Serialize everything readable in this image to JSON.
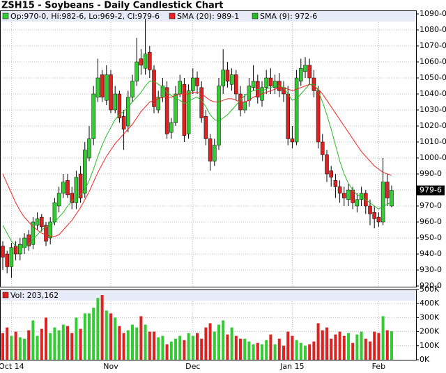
{
  "chart_data": {
    "type": "candlestick",
    "title": "ZSH15 - Soybeans - Daily Candlestick Chart",
    "ohlc_label": "Op:970-0, Hi:982-6, Lo:969-2, Cl:979-6",
    "categories": [
      null,
      null,
      "Oct 14",
      null,
      null,
      null,
      null,
      null,
      null,
      null,
      null,
      null,
      null,
      null,
      null,
      null,
      null,
      null,
      null,
      null,
      null,
      null,
      null,
      null,
      null,
      "Nov",
      null,
      null,
      null,
      null,
      null,
      null,
      null,
      null,
      null,
      null,
      null,
      null,
      null,
      null,
      null,
      null,
      null,
      null,
      "Dec",
      null,
      null,
      null,
      null,
      null,
      null,
      null,
      null,
      null,
      null,
      null,
      null,
      null,
      null,
      null,
      null,
      null,
      null,
      null,
      null,
      null,
      null,
      "Jan 15",
      null,
      null,
      null,
      null,
      null,
      null,
      null,
      null,
      null,
      null,
      null,
      null,
      null,
      null,
      null,
      null,
      null,
      null,
      null,
      "Feb",
      null,
      null,
      null
    ],
    "open": [
      945,
      940,
      932,
      945,
      940,
      944,
      952,
      946,
      958,
      963,
      958,
      950,
      960,
      970,
      978,
      986,
      978,
      972,
      990,
      978,
      1000,
      1012,
      1038,
      1052,
      1036,
      1052,
      1030,
      1040,
      1026,
      1020,
      1038,
      1048,
      1062,
      1056,
      1066,
      1055,
      1030,
      1038,
      1044,
      1016,
      1022,
      1040,
      1046,
      1015,
      1042,
      1050,
      1044,
      1026,
      1012,
      998,
      1008,
      1045,
      1055,
      1046,
      1052,
      1040,
      1030,
      1036,
      1044,
      1048,
      1036,
      1044,
      1050,
      1044,
      1048,
      1044,
      1040,
      1012,
      1010,
      1048,
      1054,
      1058,
      1050,
      1042,
      1010,
      1002,
      992,
      986,
      982,
      978,
      974,
      980,
      970,
      974,
      978,
      970,
      966,
      963,
      960,
      985,
      970
    ],
    "high": [
      948,
      942,
      947,
      948,
      950,
      953,
      955,
      963,
      966,
      965,
      960,
      963,
      975,
      982,
      990,
      990,
      982,
      992,
      995,
      1010,
      1020,
      1045,
      1062,
      1055,
      1058,
      1055,
      1045,
      1042,
      1030,
      1042,
      1052,
      1075,
      1068,
      1087,
      1070,
      1058,
      1042,
      1050,
      1048,
      1025,
      1045,
      1052,
      1050,
      1046,
      1056,
      1054,
      1048,
      1030,
      1015,
      1012,
      1050,
      1068,
      1060,
      1056,
      1055,
      1045,
      1040,
      1050,
      1058,
      1052,
      1048,
      1055,
      1056,
      1052,
      1053,
      1048,
      1045,
      1020,
      1055,
      1062,
      1063,
      1062,
      1055,
      1045,
      1015,
      1005,
      995,
      990,
      986,
      982,
      984,
      982,
      978,
      982,
      980,
      974,
      970,
      966,
      1000,
      990,
      982.75
    ],
    "low": [
      930,
      928,
      925,
      936,
      936,
      940,
      942,
      943,
      955,
      954,
      945,
      946,
      958,
      966,
      975,
      975,
      968,
      968,
      972,
      975,
      998,
      1008,
      1035,
      1035,
      1033,
      1028,
      1028,
      1022,
      1005,
      1016,
      1035,
      1045,
      1052,
      1052,
      1050,
      1028,
      1028,
      1035,
      1012,
      1012,
      1020,
      1038,
      1010,
      1012,
      1040,
      1040,
      1022,
      1008,
      992,
      995,
      1005,
      1040,
      1044,
      1042,
      1036,
      1026,
      1028,
      1032,
      1042,
      1034,
      1032,
      1040,
      1040,
      1040,
      1038,
      1035,
      1008,
      1006,
      1008,
      1045,
      1050,
      1046,
      1038,
      1006,
      998,
      985,
      982,
      975,
      972,
      970,
      970,
      968,
      966,
      970,
      965,
      958,
      956,
      957,
      958,
      970,
      969.25
    ],
    "close": [
      938,
      932,
      944,
      940,
      946,
      950,
      945,
      960,
      962,
      957,
      948,
      960,
      972,
      978,
      985,
      977,
      972,
      988,
      975,
      1005,
      1012,
      1040,
      1050,
      1038,
      1052,
      1030,
      1040,
      1025,
      1018,
      1038,
      1048,
      1060,
      1058,
      1065,
      1055,
      1032,
      1038,
      1045,
      1015,
      1022,
      1040,
      1048,
      1014,
      1042,
      1050,
      1045,
      1025,
      1012,
      998,
      1008,
      1045,
      1055,
      1048,
      1052,
      1040,
      1030,
      1035,
      1045,
      1048,
      1038,
      1044,
      1050,
      1045,
      1048,
      1042,
      1040,
      1012,
      1010,
      1050,
      1056,
      1058,
      1050,
      1042,
      1010,
      1002,
      990,
      988,
      982,
      978,
      975,
      980,
      972,
      974,
      978,
      970,
      965,
      962,
      960,
      985,
      975,
      979.75
    ],
    "up_color": "#33cc33",
    "down_color": "#dd2222",
    "series": [
      {
        "name": "SMA (20): 989-1",
        "color": "#ee2222",
        "values": [
          990,
          984,
          978,
          972,
          967,
          963,
          960,
          957,
          955,
          953,
          952,
          951,
          951,
          952,
          955,
          958,
          961,
          965,
          969,
          974,
          979,
          985,
          991,
          996,
          1001,
          1005,
          1009,
          1012,
          1015,
          1018,
          1021,
          1025,
          1029,
          1032,
          1035,
          1036,
          1037,
          1038,
          1038,
          1038,
          1039,
          1040,
          1040,
          1040,
          1041,
          1041,
          1040,
          1038,
          1036,
          1035,
          1035,
          1036,
          1037,
          1037,
          1036,
          1035,
          1035,
          1036,
          1038,
          1039,
          1040,
          1041,
          1042,
          1043,
          1044,
          1044,
          1043,
          1042,
          1043,
          1044,
          1045,
          1046,
          1045,
          1043,
          1040,
          1036,
          1032,
          1028,
          1024,
          1020,
          1016,
          1012,
          1008,
          1004,
          1001,
          998,
          995,
          993,
          991,
          990,
          989.125
        ]
      },
      {
        "name": "SMA (9): 972-6",
        "color": "#22bb22",
        "values": [
          958,
          953,
          948,
          945,
          944,
          944,
          946,
          949,
          952,
          955,
          957,
          958,
          960,
          963,
          966,
          970,
          973,
          975,
          977,
          980,
          986,
          993,
          1001,
          1008,
          1014,
          1019,
          1024,
          1027,
          1029,
          1032,
          1035,
          1038,
          1041,
          1045,
          1048,
          1048,
          1046,
          1044,
          1041,
          1039,
          1037,
          1036,
          1034,
          1035,
          1037,
          1038,
          1036,
          1032,
          1027,
          1024,
          1023,
          1025,
          1027,
          1030,
          1033,
          1036,
          1039,
          1041,
          1042,
          1043,
          1042,
          1043,
          1044,
          1045,
          1045,
          1044,
          1040,
          1036,
          1037,
          1040,
          1043,
          1046,
          1046,
          1042,
          1035,
          1027,
          1018,
          1008,
          998,
          990,
          984,
          980,
          977,
          976,
          974,
          972,
          970,
          968,
          970,
          971,
          972.75
        ]
      }
    ],
    "ylim": [
      920,
      1090
    ],
    "yticks": [
      {
        "value": 920,
        "label": "920-0"
      },
      {
        "value": 930,
        "label": "930-0"
      },
      {
        "value": 940,
        "label": "940-0"
      },
      {
        "value": 950,
        "label": "950-0"
      },
      {
        "value": 960,
        "label": "960-0"
      },
      {
        "value": 970,
        "label": "970-0"
      },
      {
        "value": 980,
        "label": "980-0"
      },
      {
        "value": 990,
        "label": "990-0"
      },
      {
        "value": 1000,
        "label": "1000-0"
      },
      {
        "value": 1010,
        "label": "1010-0"
      },
      {
        "value": 1020,
        "label": "1020-0"
      },
      {
        "value": 1030,
        "label": "1030-0"
      },
      {
        "value": 1040,
        "label": "1040-0"
      },
      {
        "value": 1050,
        "label": "1050-0"
      },
      {
        "value": 1060,
        "label": "1060-0"
      },
      {
        "value": 1070,
        "label": "1070-0"
      },
      {
        "value": 1080,
        "label": "1080-0"
      },
      {
        "value": 1090,
        "label": "1090-0"
      }
    ],
    "last_price": {
      "value": 979.75,
      "label": "979-6"
    },
    "volume": {
      "name": "Vol: 203,162",
      "legend_color": "#dd2222",
      "values": [
        190000,
        230000,
        170000,
        200000,
        160000,
        150000,
        210000,
        280000,
        170000,
        220000,
        300000,
        190000,
        230000,
        210000,
        250000,
        240000,
        190000,
        300000,
        220000,
        330000,
        330000,
        370000,
        440000,
        460000,
        350000,
        330000,
        300000,
        240000,
        190000,
        210000,
        250000,
        230000,
        310000,
        250000,
        200000,
        200000,
        160000,
        170000,
        110000,
        130000,
        150000,
        170000,
        140000,
        190000,
        170000,
        190000,
        150000,
        230000,
        260000,
        200000,
        250000,
        280000,
        180000,
        230000,
        170000,
        150000,
        150000,
        130000,
        110000,
        120000,
        110000,
        140000,
        180000,
        110000,
        150000,
        100000,
        200000,
        170000,
        140000,
        120000,
        100000,
        110000,
        130000,
        260000,
        210000,
        230000,
        150000,
        180000,
        200000,
        170000,
        190000,
        120000,
        180000,
        200000,
        150000,
        130000,
        200000,
        190000,
        310000,
        210000,
        203162
      ],
      "ylim": [
        0,
        500000
      ],
      "yticks": [
        {
          "value": 0,
          "label": "0K"
        },
        {
          "value": 100000,
          "label": "100K"
        },
        {
          "value": 200000,
          "label": "200K"
        },
        {
          "value": 300000,
          "label": "300K"
        },
        {
          "value": 400000,
          "label": "400K"
        },
        {
          "value": 500000,
          "label": "500K"
        }
      ]
    },
    "grid": true
  }
}
